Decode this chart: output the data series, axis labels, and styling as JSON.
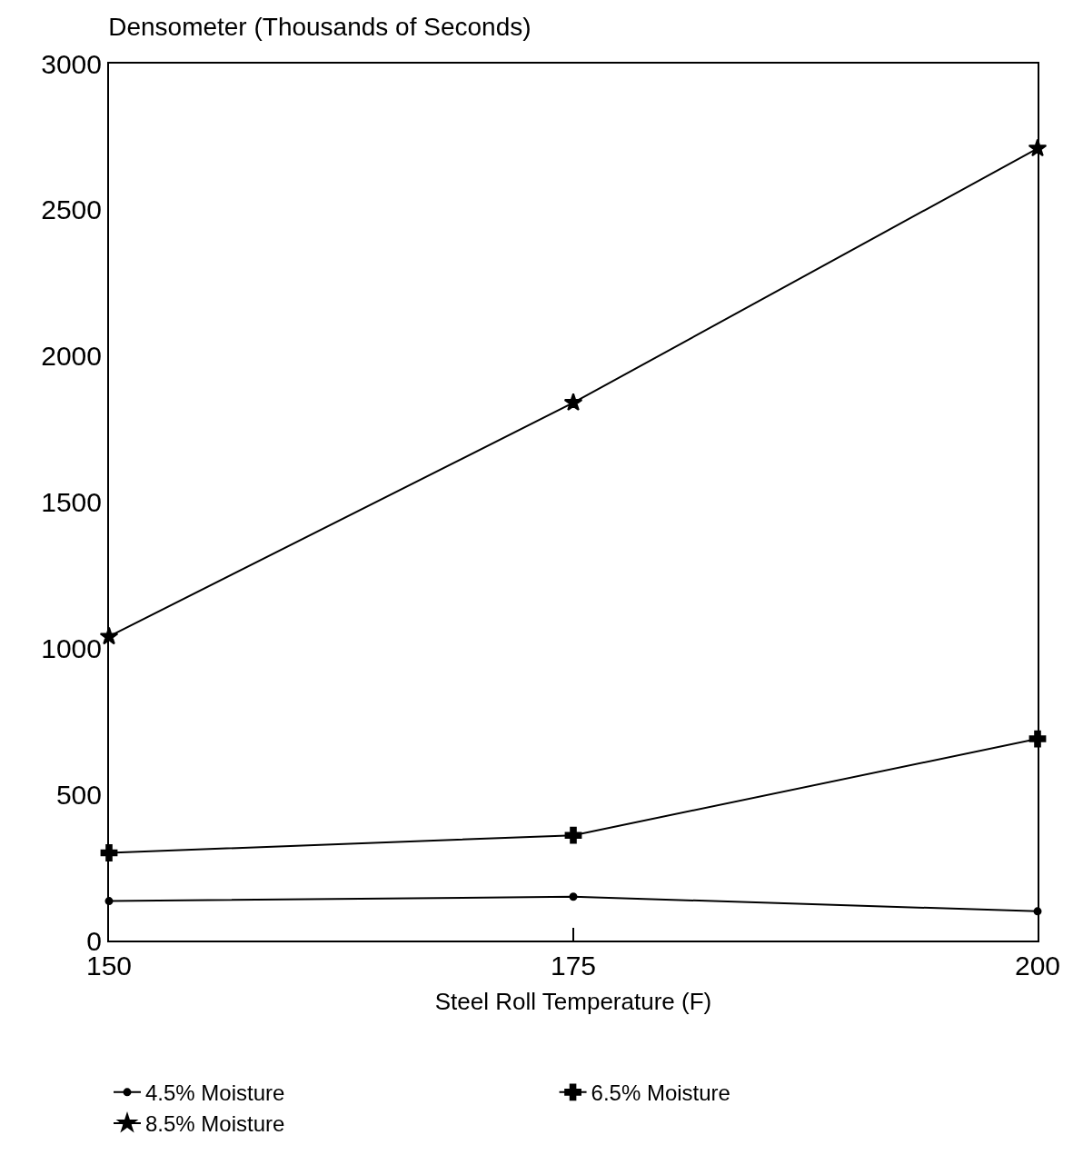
{
  "chart_data": {
    "type": "line",
    "title": "Densometer (Thousands of Seconds)",
    "xlabel": "Steel Roll Temperature (F)",
    "x": [
      150,
      175,
      200
    ],
    "xlim": [
      150,
      200
    ],
    "xticks": [
      150,
      175,
      200
    ],
    "ylim": [
      0,
      3000
    ],
    "yticks": [
      0,
      500,
      1000,
      1500,
      2000,
      2500,
      3000
    ],
    "legend": "bottom",
    "line_style": "solid",
    "series": [
      {
        "name": "4.5% Moisture",
        "color": "#000000",
        "marker": "circle",
        "values": [
          135,
          150,
          100
        ]
      },
      {
        "name": "6.5% Moisture",
        "color": "#000000",
        "marker": "cross",
        "values": [
          300,
          360,
          690
        ]
      },
      {
        "name": "8.5% Moisture",
        "color": "#000000",
        "marker": "star",
        "values": [
          1040,
          1840,
          2710
        ]
      }
    ]
  }
}
